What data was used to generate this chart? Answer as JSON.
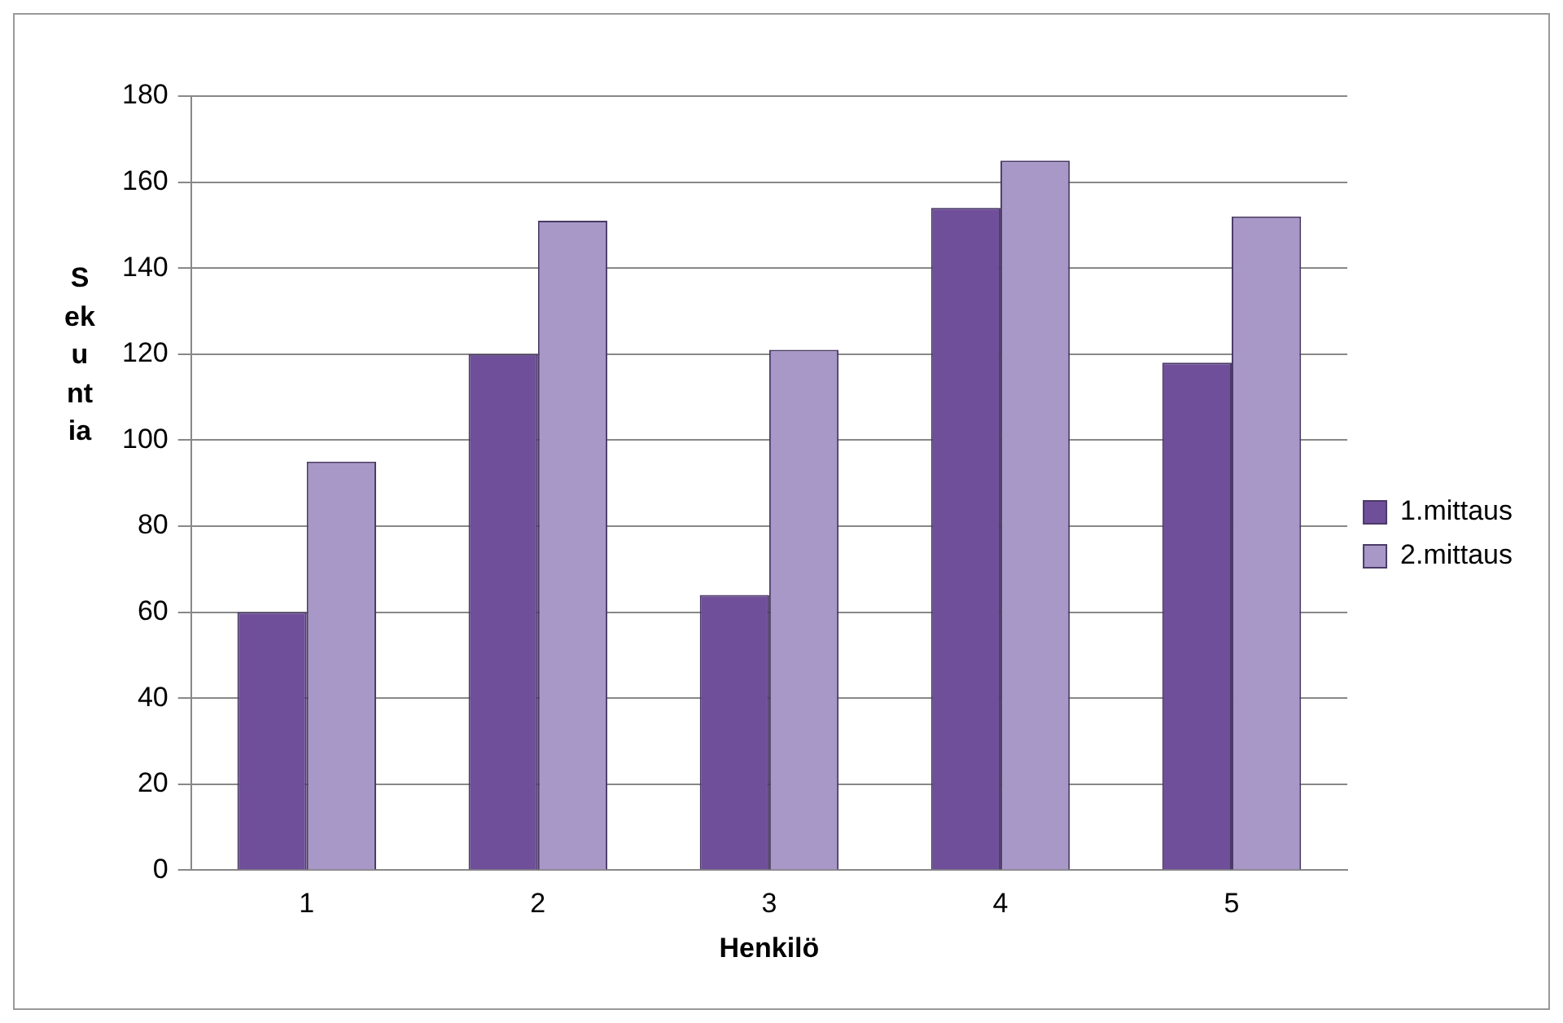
{
  "chart_data": {
    "type": "bar",
    "xlabel": "Henkilö",
    "ylabel": "Sekuntia",
    "categories": [
      "1",
      "2",
      "3",
      "4",
      "5"
    ],
    "series": [
      {
        "name": "1.mittaus",
        "color": "#6f4e9a",
        "values": [
          60,
          120,
          64,
          154,
          118
        ]
      },
      {
        "name": "2.mittaus",
        "color": "#a898c8",
        "values": [
          95,
          151,
          121,
          165,
          152
        ]
      }
    ],
    "ylim": [
      0,
      180
    ],
    "yticks": [
      0,
      20,
      40,
      60,
      80,
      100,
      120,
      140,
      160,
      180
    ],
    "grid": "y",
    "legend": "right"
  }
}
